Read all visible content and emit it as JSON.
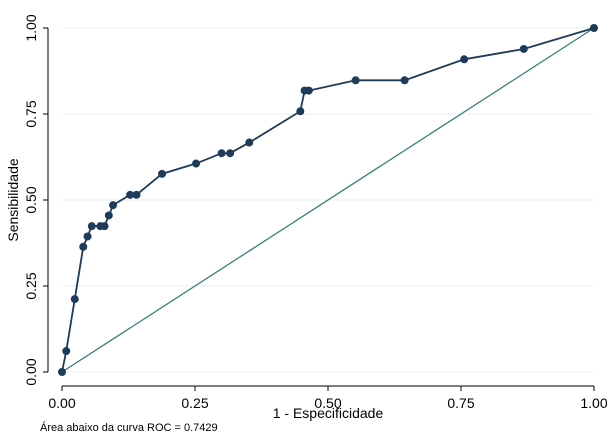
{
  "chart_data": {
    "type": "line",
    "title": "",
    "xlabel": "1 - Especificidade",
    "ylabel": "Sensibilidade",
    "xlim": [
      0,
      1
    ],
    "ylim": [
      0,
      1
    ],
    "x_ticks": [
      "0.00",
      "0.25",
      "0.50",
      "0.75",
      "1.00"
    ],
    "y_ticks": [
      "0.00",
      "0.25",
      "0.50",
      "0.75",
      "1.00"
    ],
    "grid": true,
    "series": [
      {
        "color": "#1f3b5a",
        "markers": true,
        "x": [
          0.0,
          0.008,
          0.024,
          0.04,
          0.048,
          0.056,
          0.072,
          0.08,
          0.088,
          0.096,
          0.128,
          0.14,
          0.188,
          0.252,
          0.3,
          0.316,
          0.352,
          0.448,
          0.456,
          0.464,
          0.552,
          0.644,
          0.756,
          0.868,
          1.0
        ],
        "y": [
          0.0,
          0.061,
          0.212,
          0.364,
          0.394,
          0.424,
          0.424,
          0.424,
          0.455,
          0.485,
          0.515,
          0.515,
          0.576,
          0.606,
          0.636,
          0.636,
          0.667,
          0.758,
          0.818,
          0.818,
          0.848,
          0.848,
          0.909,
          0.939,
          1.0
        ]
      },
      {
        "color": "#3a7f7a",
        "markers": false,
        "x": [
          0,
          1
        ],
        "y": [
          0,
          1
        ]
      }
    ]
  },
  "annotation": "Área abaixo da curva ROC = 0.7429"
}
